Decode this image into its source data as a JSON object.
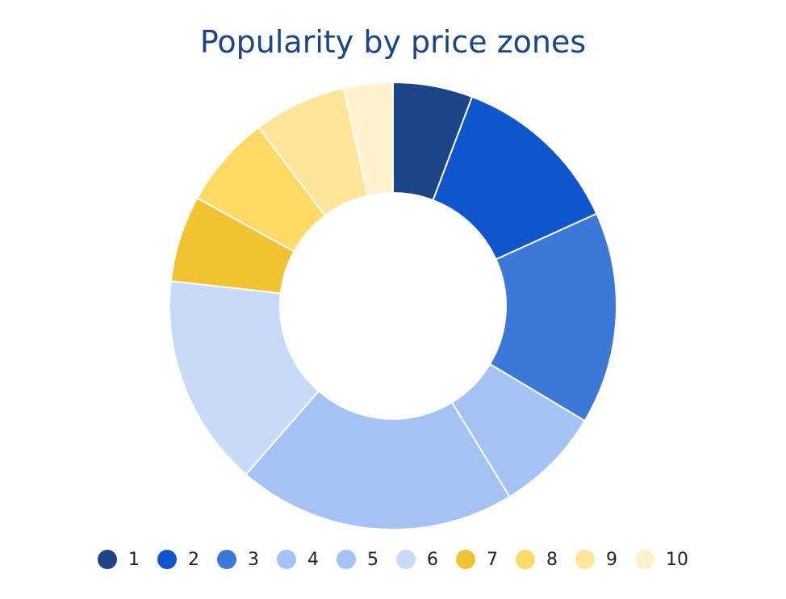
{
  "chart_data": {
    "type": "pie",
    "title": "Popularity by price zones",
    "donut": true,
    "legend_position": "bottom",
    "categories": [
      "1",
      "2",
      "3",
      "4",
      "5",
      "6",
      "7",
      "8",
      "9",
      "10"
    ],
    "values": [
      6,
      13,
      16,
      8,
      21,
      16,
      6.5,
      7,
      7,
      3.7
    ],
    "colors": [
      "#1c4587",
      "#1155cc",
      "#3c78d8",
      "#a4c2f4",
      "#a4c2f4",
      "#c9daf8",
      "#f1c232",
      "#ffd966",
      "#ffe599",
      "#fff2cc"
    ]
  }
}
